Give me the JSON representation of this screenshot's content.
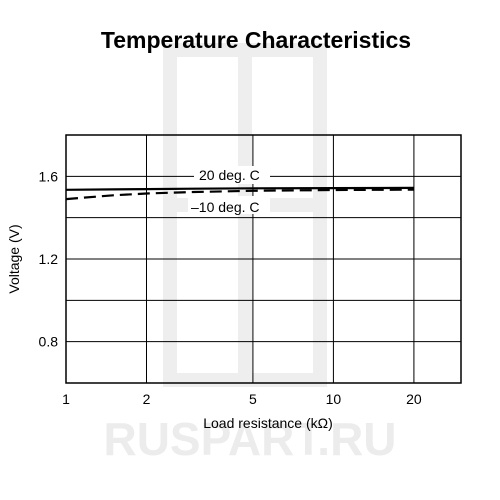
{
  "watermark": {
    "text": "RUSPART.RU",
    "color": "#ececec"
  },
  "chart_data": {
    "type": "line",
    "title": "Temperature Characteristics",
    "xlabel": "Load resistance (kΩ)",
    "ylabel": "Voltage (V)",
    "x_scale": "log",
    "xlim": [
      1,
      30
    ],
    "ylim": [
      0.6,
      1.8
    ],
    "x_ticks": [
      1,
      2,
      5,
      10,
      20
    ],
    "x_tick_labels": [
      "1",
      "2",
      "5",
      "10",
      "20"
    ],
    "y_ticks": [
      0.8,
      1.2,
      1.6
    ],
    "y_tick_labels": [
      "0.8",
      "1.2",
      "1.6"
    ],
    "grid": true,
    "series": [
      {
        "name": "20 deg. C",
        "style": "solid",
        "color": "#000000",
        "x": [
          1,
          1.5,
          2,
          3,
          5,
          10,
          20
        ],
        "y": [
          1.535,
          1.537,
          1.538,
          1.54,
          1.542,
          1.543,
          1.544
        ]
      },
      {
        "name": "–10 deg. C",
        "style": "dashed",
        "color": "#000000",
        "x": [
          1,
          1.5,
          2,
          3,
          5,
          10,
          20
        ],
        "y": [
          1.49,
          1.508,
          1.517,
          1.524,
          1.53,
          1.534,
          1.536
        ]
      }
    ]
  }
}
